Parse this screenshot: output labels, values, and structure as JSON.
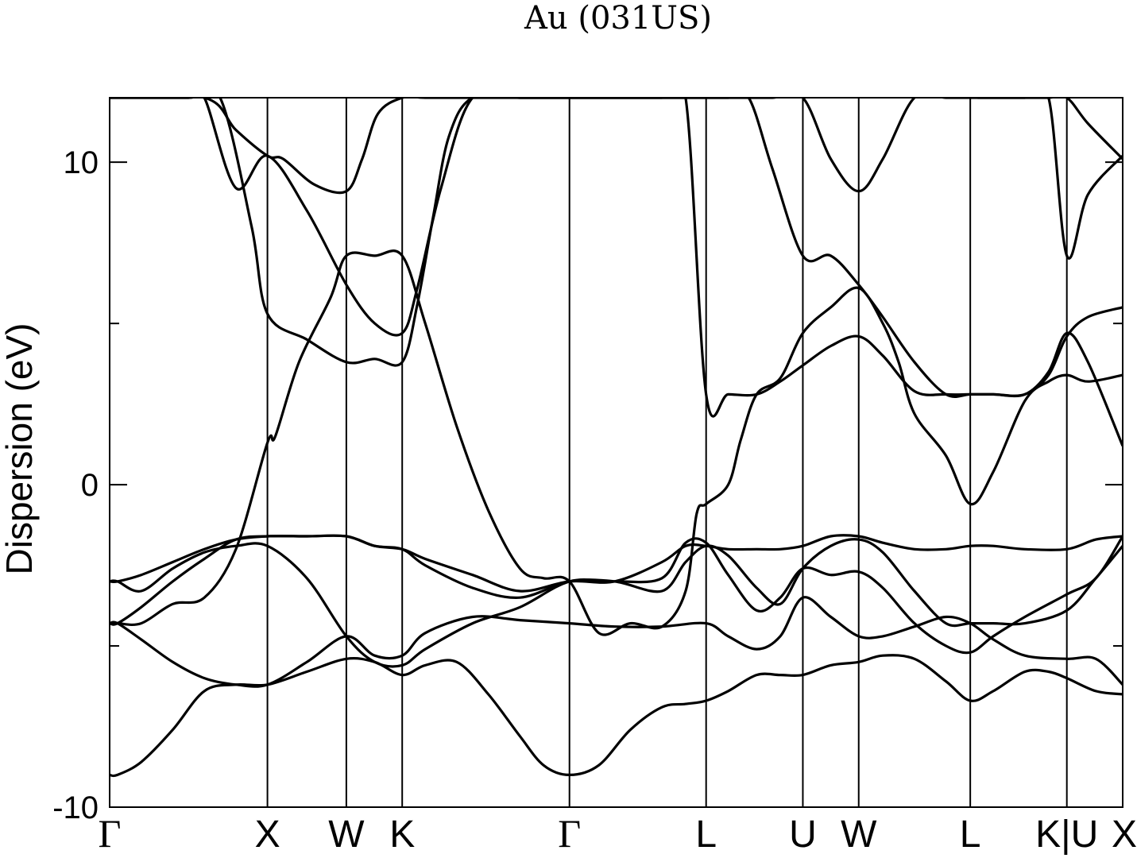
{
  "chart_data": {
    "type": "line",
    "title": "Au (031US)",
    "ylabel": "Dispersion (eV)",
    "xlabel": "",
    "ylim": [
      -10,
      12
    ],
    "yticks": [
      -10,
      0,
      10
    ],
    "ytick_labels": [
      "-10",
      "0",
      "10"
    ],
    "grid": false,
    "legend": "none",
    "line_color": "#000000",
    "high_symmetry_points": [
      {
        "label": "Γ",
        "x": 0.0
      },
      {
        "label": "X",
        "x": 1.0
      },
      {
        "label": "W",
        "x": 1.5
      },
      {
        "label": "K",
        "x": 1.854
      },
      {
        "label": "Γ",
        "x": 2.914
      },
      {
        "label": "L",
        "x": 3.78
      },
      {
        "label": "U",
        "x": 4.393
      },
      {
        "label": "W",
        "x": 4.747
      },
      {
        "label": "L",
        "x": 5.454
      },
      {
        "label": "K|U",
        "x": 6.066
      },
      {
        "label": "X",
        "x": 6.42
      }
    ],
    "xlim": [
      0,
      6.42
    ],
    "series": [
      {
        "x": [
          0.0,
          0.05,
          0.2,
          0.4,
          0.6,
          0.8,
          1.0,
          1.25,
          1.5,
          1.68,
          1.854,
          2.0,
          2.2,
          2.4,
          2.6,
          2.75,
          2.914,
          3.1,
          3.3,
          3.5,
          3.65,
          3.78,
          3.92,
          4.1,
          4.25,
          4.393,
          4.57,
          4.747,
          4.9,
          5.1,
          5.3,
          5.454,
          5.6,
          5.8,
          5.95,
          6.066,
          6.25,
          6.42
        ],
        "y": [
          -9.0,
          -9.0,
          -8.6,
          -7.6,
          -6.4,
          -6.2,
          -6.2,
          -5.8,
          -5.4,
          -5.5,
          -5.9,
          -5.6,
          -5.5,
          -6.5,
          -7.8,
          -8.7,
          -9.0,
          -8.7,
          -7.6,
          -6.9,
          -6.8,
          -6.7,
          -6.4,
          -5.9,
          -5.9,
          -5.9,
          -5.6,
          -5.5,
          -5.3,
          -5.4,
          -6.1,
          -6.7,
          -6.4,
          -5.8,
          -5.8,
          -6.0,
          -6.4,
          -6.5
        ]
      },
      {
        "x": [
          0.0,
          0.05,
          0.2,
          0.4,
          0.6,
          0.8,
          1.0,
          1.25,
          1.5,
          1.68,
          1.854,
          2.0,
          2.3,
          2.6,
          2.914,
          3.2,
          3.5,
          3.78,
          3.92,
          4.1,
          4.25,
          4.393,
          4.57,
          4.747,
          4.9,
          5.1,
          5.3,
          5.454,
          5.6,
          5.8,
          6.066,
          6.25,
          6.42
        ],
        "y": [
          -4.3,
          -4.3,
          -4.8,
          -5.5,
          -6.0,
          -6.2,
          -6.2,
          -5.5,
          -4.7,
          -5.3,
          -5.3,
          -4.6,
          -4.1,
          -4.2,
          -4.3,
          -4.4,
          -4.4,
          -4.3,
          -4.7,
          -5.1,
          -4.7,
          -3.5,
          -4.1,
          -4.7,
          -4.7,
          -4.4,
          -4.1,
          -4.3,
          -4.8,
          -5.3,
          -5.4,
          -5.4,
          -6.2
        ]
      },
      {
        "x": [
          0.0,
          0.05,
          0.2,
          0.4,
          0.6,
          0.8,
          1.0,
          1.25,
          1.5,
          1.68,
          1.854,
          2.0,
          2.3,
          2.6,
          2.914,
          3.2,
          3.5,
          3.65,
          3.78,
          3.92,
          4.1,
          4.25,
          4.393,
          4.57,
          4.747,
          4.9,
          5.1,
          5.3,
          5.454,
          5.6,
          5.8,
          6.066,
          6.25,
          6.42
        ],
        "y": [
          -3.0,
          -3.0,
          -3.3,
          -2.6,
          -2.1,
          -1.9,
          -1.9,
          -2.9,
          -4.7,
          -5.5,
          -5.6,
          -5.1,
          -4.3,
          -3.8,
          -3.0,
          -3.0,
          -2.9,
          -1.8,
          -1.8,
          -2.8,
          -3.9,
          -3.5,
          -2.6,
          -2.8,
          -2.7,
          -3.2,
          -4.3,
          -5.0,
          -5.2,
          -4.7,
          -4.1,
          -3.4,
          -2.9,
          -1.6
        ]
      },
      {
        "x": [
          0.0,
          0.05,
          0.2,
          0.4,
          0.6,
          0.8,
          1.0,
          1.25,
          1.5,
          1.68,
          1.854,
          2.0,
          2.3,
          2.6,
          2.914,
          3.2,
          3.5,
          3.65,
          3.78,
          3.92,
          4.1,
          4.25,
          4.393,
          4.57,
          4.747,
          4.9,
          5.1,
          5.3,
          5.454,
          5.6,
          5.8,
          6.066,
          6.25,
          6.42
        ],
        "y": [
          -4.3,
          -4.3,
          -3.8,
          -3.0,
          -2.3,
          -1.7,
          -1.6,
          -1.6,
          -1.6,
          -1.9,
          -2.0,
          -2.5,
          -3.2,
          -3.5,
          -3.0,
          -3.0,
          -3.3,
          -2.4,
          -1.9,
          -2.2,
          -3.2,
          -3.7,
          -2.6,
          -1.9,
          -1.7,
          -2.1,
          -3.3,
          -4.3,
          -4.3,
          -4.3,
          -4.3,
          -3.9,
          -2.9,
          -1.9
        ]
      },
      {
        "x": [
          0.0,
          0.05,
          0.2,
          0.4,
          0.6,
          0.8,
          1.0,
          1.25,
          1.5,
          1.68,
          1.854,
          2.0,
          2.3,
          2.6,
          2.914,
          3.2,
          3.5,
          3.65,
          3.78,
          3.92,
          4.1,
          4.25,
          4.393,
          4.57,
          4.747,
          4.9,
          5.1,
          5.3,
          5.454,
          5.6,
          5.8,
          6.066,
          6.25,
          6.42
        ],
        "y": [
          -3.0,
          -3.0,
          -2.8,
          -2.4,
          -2.0,
          -1.7,
          -1.6,
          -1.6,
          -1.6,
          -1.9,
          -2.0,
          -2.3,
          -2.8,
          -3.3,
          -3.0,
          -3.0,
          -2.4,
          -1.9,
          -1.9,
          -2.0,
          -2.0,
          -2.0,
          -1.9,
          -1.6,
          -1.6,
          -1.8,
          -2.0,
          -2.0,
          -1.9,
          -1.9,
          -2.0,
          -2.0,
          -1.7,
          -1.6
        ]
      },
      {
        "x": [
          0.0,
          0.05,
          0.2,
          0.4,
          0.6,
          0.8,
          1.0,
          1.05,
          1.2,
          1.4,
          1.5,
          1.68,
          1.854,
          2.0,
          2.2,
          2.4,
          2.6,
          2.75,
          2.914,
          3.1,
          3.3,
          3.5,
          3.65,
          3.72,
          3.78,
          3.92,
          4.0,
          4.1,
          4.25,
          4.393,
          4.57,
          4.747,
          4.9,
          5.0,
          5.1,
          5.3,
          5.454,
          5.6,
          5.8,
          5.95,
          6.066,
          6.2,
          6.42
        ],
        "y": [
          -4.3,
          -4.3,
          -4.3,
          -3.7,
          -3.5,
          -2.0,
          1.3,
          1.5,
          3.8,
          5.8,
          7.1,
          7.1,
          7.1,
          5.0,
          1.8,
          -0.8,
          -2.6,
          -2.9,
          -3.0,
          -4.6,
          -4.3,
          -4.4,
          -3.3,
          -0.9,
          -0.6,
          0.0,
          1.4,
          2.8,
          3.3,
          4.7,
          5.5,
          6.1,
          5.0,
          3.8,
          2.2,
          0.9,
          -0.6,
          0.4,
          2.6,
          3.2,
          3.4,
          3.2,
          3.4
        ]
      },
      {
        "x": [
          0.0,
          0.5,
          0.7,
          0.9,
          1.0,
          1.25,
          1.5,
          1.68,
          1.854,
          1.95,
          2.05,
          2.15,
          2.3,
          2.6,
          3.0,
          3.3,
          3.5,
          3.65,
          3.78,
          3.92,
          4.1,
          4.25,
          4.393,
          4.57,
          4.747,
          4.9,
          5.1,
          5.3,
          5.454,
          5.6,
          5.8,
          5.95,
          6.066,
          6.2,
          6.42
        ],
        "y": [
          12.0,
          12.0,
          12.0,
          8.0,
          5.3,
          4.5,
          3.8,
          3.9,
          3.8,
          5.6,
          8.3,
          10.8,
          12.0,
          12.0,
          12.0,
          12.0,
          12.0,
          12.0,
          2.8,
          2.8,
          2.8,
          3.2,
          3.7,
          4.3,
          4.6,
          4.0,
          2.9,
          2.8,
          2.8,
          2.8,
          2.8,
          3.5,
          4.7,
          3.8,
          1.2
        ]
      },
      {
        "x": [
          0.0,
          0.5,
          0.6,
          0.8,
          1.0,
          1.25,
          1.5,
          1.68,
          1.854,
          1.95,
          2.1,
          2.3,
          2.6,
          3.0,
          3.3,
          3.5,
          3.65,
          3.78,
          3.92,
          4.05,
          4.2,
          4.393,
          4.57,
          4.747,
          4.9,
          5.1,
          5.3,
          5.454,
          5.6,
          5.8,
          5.95,
          6.066,
          6.2,
          6.42
        ],
        "y": [
          12.0,
          12.0,
          12.0,
          9.2,
          10.2,
          8.5,
          6.2,
          5.0,
          4.7,
          6.1,
          9.2,
          12.0,
          12.0,
          12.0,
          12.0,
          12.0,
          12.0,
          12.0,
          12.0,
          12.0,
          9.8,
          7.1,
          7.1,
          6.2,
          5.2,
          3.8,
          2.8,
          2.8,
          2.8,
          2.8,
          3.4,
          4.6,
          5.2,
          5.5
        ]
      },
      {
        "x": [
          0.0,
          0.6,
          0.8,
          1.0,
          1.1,
          1.3,
          1.5,
          1.6,
          1.7,
          1.854,
          2.0,
          2.3,
          2.6,
          3.0,
          3.3,
          3.5,
          3.65,
          3.78,
          3.92,
          4.05,
          4.2,
          4.393,
          4.57,
          4.747,
          4.9,
          5.1,
          5.3,
          5.454,
          5.6,
          5.8,
          5.95,
          6.066,
          6.2,
          6.42
        ],
        "y": [
          12.0,
          12.0,
          11.0,
          10.2,
          10.1,
          9.3,
          9.1,
          10.1,
          11.5,
          12.0,
          12.0,
          12.0,
          12.0,
          12.0,
          12.0,
          12.0,
          12.0,
          12.0,
          12.0,
          12.0,
          12.0,
          12.0,
          10.1,
          9.1,
          10.1,
          12.0,
          12.0,
          12.0,
          12.0,
          12.0,
          12.0,
          7.1,
          9.0,
          10.2
        ]
      },
      {
        "x": [
          5.5,
          5.8,
          5.95,
          6.066,
          6.2,
          6.42
        ],
        "y": [
          12.0,
          12.0,
          12.0,
          12.0,
          11.2,
          10.1
        ]
      }
    ]
  }
}
